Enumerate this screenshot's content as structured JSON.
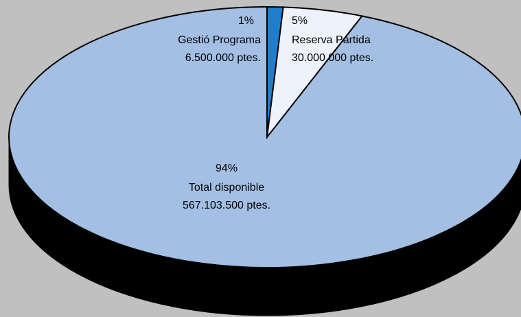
{
  "chart_data": {
    "type": "pie",
    "categories": [
      "Gestió Programa",
      "Reserva Partida",
      "Total disponible"
    ],
    "values": [
      1,
      5,
      94
    ],
    "value_labels": [
      "1%",
      "5%",
      "94%"
    ],
    "amounts": [
      6500000,
      30000000,
      567103500
    ],
    "amount_labels": [
      "6.500.000 ptes.",
      "30.000.000 ptes.",
      "567.103.500 ptes."
    ],
    "colors": [
      "#1f7fcf",
      "#eef2fa",
      "#a3bfe3"
    ]
  }
}
